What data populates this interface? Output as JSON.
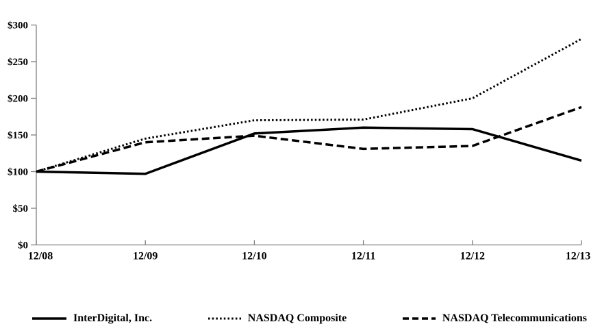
{
  "chart_data": {
    "type": "line",
    "x_labels": [
      "12/08",
      "12/09",
      "12/10",
      "12/11",
      "12/12",
      "12/13"
    ],
    "series": [
      {
        "name": "InterDigital, Inc.",
        "style": "solid",
        "values": [
          100,
          97,
          152,
          160,
          158,
          115
        ]
      },
      {
        "name": "NASDAQ Composite",
        "style": "dotted",
        "values": [
          100,
          145,
          170,
          171,
          200,
          281
        ]
      },
      {
        "name": "NASDAQ Telecommunications",
        "style": "dashed",
        "values": [
          100,
          140,
          149,
          131,
          135,
          188
        ]
      }
    ],
    "y_ticks": [
      "$0",
      "$50",
      "$100",
      "$150",
      "$200",
      "$250",
      "$300"
    ],
    "y_tick_values": [
      0,
      50,
      100,
      150,
      200,
      250,
      300
    ],
    "ylim": [
      0,
      300
    ],
    "grid": false,
    "legend_position": "bottom",
    "line_color": "#000000",
    "axis_color": "#808080"
  }
}
